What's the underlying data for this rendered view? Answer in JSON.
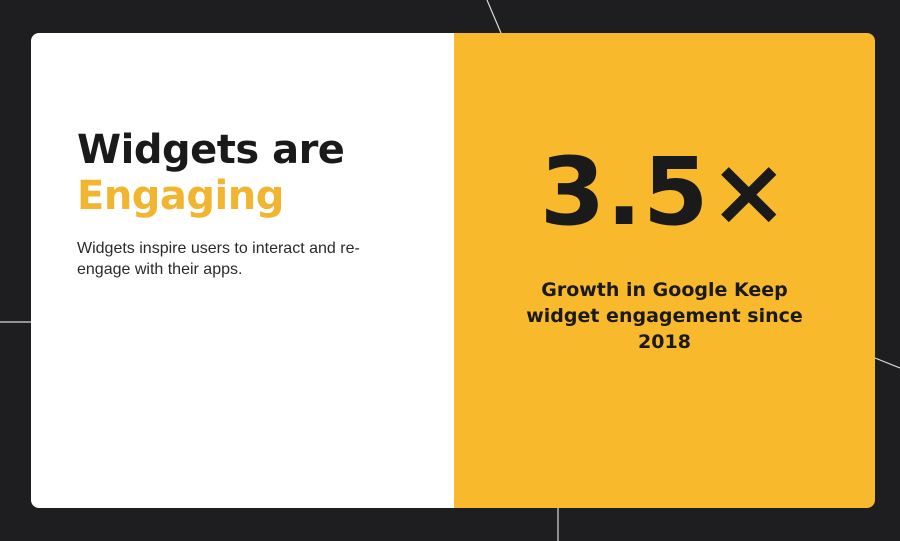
{
  "slide": {
    "headline_line1": "Widgets are",
    "headline_line2": "Engaging",
    "description": "Widgets inspire users to interact and re-engage with their apps.",
    "stat_value": "3.5×",
    "stat_caption": "Growth in Google Keep widget engagement since 2018"
  },
  "colors": {
    "background": "#1e1e20",
    "card_left": "#ffffff",
    "accent_yellow": "#f8b92c",
    "headline_dark": "#1a1a1a",
    "headline_accent": "#f2b52f",
    "body_text": "#2a2a2a",
    "line_color": "#d9d9d9"
  }
}
